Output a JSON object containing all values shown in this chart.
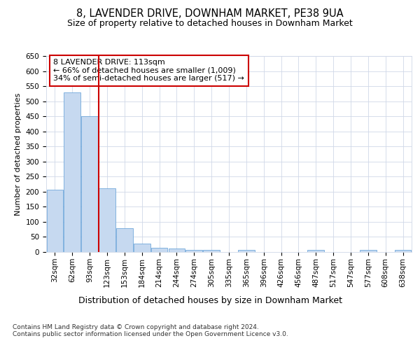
{
  "title1": "8, LAVENDER DRIVE, DOWNHAM MARKET, PE38 9UA",
  "title2": "Size of property relative to detached houses in Downham Market",
  "xlabel": "Distribution of detached houses by size in Downham Market",
  "ylabel": "Number of detached properties",
  "categories": [
    "32sqm",
    "62sqm",
    "93sqm",
    "123sqm",
    "153sqm",
    "184sqm",
    "214sqm",
    "244sqm",
    "274sqm",
    "305sqm",
    "335sqm",
    "365sqm",
    "396sqm",
    "426sqm",
    "456sqm",
    "487sqm",
    "517sqm",
    "547sqm",
    "577sqm",
    "608sqm",
    "638sqm"
  ],
  "values": [
    207,
    530,
    450,
    212,
    78,
    27,
    15,
    12,
    6,
    8,
    0,
    6,
    0,
    0,
    0,
    6,
    0,
    0,
    6,
    0,
    6
  ],
  "bar_color": "#c6d9f0",
  "bar_edge_color": "#5b9bd5",
  "vline_x": 2.5,
  "vline_color": "#cc0000",
  "annotation_text": "8 LAVENDER DRIVE: 113sqm\n← 66% of detached houses are smaller (1,009)\n34% of semi-detached houses are larger (517) →",
  "annotation_box_color": "#ffffff",
  "annotation_box_edge": "#cc0000",
  "ylim": [
    0,
    650
  ],
  "yticks": [
    0,
    50,
    100,
    150,
    200,
    250,
    300,
    350,
    400,
    450,
    500,
    550,
    600,
    650
  ],
  "bg_color": "#ffffff",
  "grid_color": "#d0d8e8",
  "footer": "Contains HM Land Registry data © Crown copyright and database right 2024.\nContains public sector information licensed under the Open Government Licence v3.0.",
  "title1_fontsize": 10.5,
  "title2_fontsize": 9,
  "xlabel_fontsize": 9,
  "ylabel_fontsize": 8,
  "tick_fontsize": 7.5,
  "annotation_fontsize": 8,
  "footer_fontsize": 6.5
}
